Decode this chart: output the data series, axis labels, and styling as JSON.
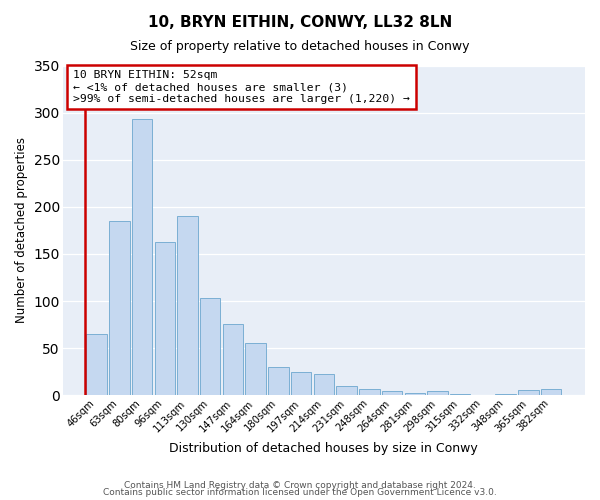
{
  "title": "10, BRYN EITHIN, CONWY, LL32 8LN",
  "subtitle": "Size of property relative to detached houses in Conwy",
  "xlabel": "Distribution of detached houses by size in Conwy",
  "ylabel": "Number of detached properties",
  "bar_labels": [
    "46sqm",
    "63sqm",
    "80sqm",
    "96sqm",
    "113sqm",
    "130sqm",
    "147sqm",
    "164sqm",
    "180sqm",
    "197sqm",
    "214sqm",
    "231sqm",
    "248sqm",
    "264sqm",
    "281sqm",
    "298sqm",
    "315sqm",
    "332sqm",
    "348sqm",
    "365sqm",
    "382sqm"
  ],
  "bar_values": [
    65,
    185,
    293,
    163,
    190,
    103,
    76,
    56,
    30,
    25,
    23,
    10,
    7,
    4,
    2,
    4,
    1,
    0,
    1,
    6,
    7
  ],
  "bar_color": "#c5d8f0",
  "bar_edge_color": "#7bafd4",
  "annotation_text": "10 BRYN EITHIN: 52sqm\n← <1% of detached houses are smaller (3)\n>99% of semi-detached houses are larger (1,220) →",
  "annotation_box_color": "#ffffff",
  "annotation_box_edge": "#cc0000",
  "red_line_color": "#cc0000",
  "ylim": [
    0,
    350
  ],
  "yticks": [
    0,
    50,
    100,
    150,
    200,
    250,
    300,
    350
  ],
  "footer1": "Contains HM Land Registry data © Crown copyright and database right 2024.",
  "footer2": "Contains public sector information licensed under the Open Government Licence v3.0.",
  "fig_bg": "#ffffff",
  "plot_bg": "#e8eef7",
  "grid_color": "#ffffff"
}
